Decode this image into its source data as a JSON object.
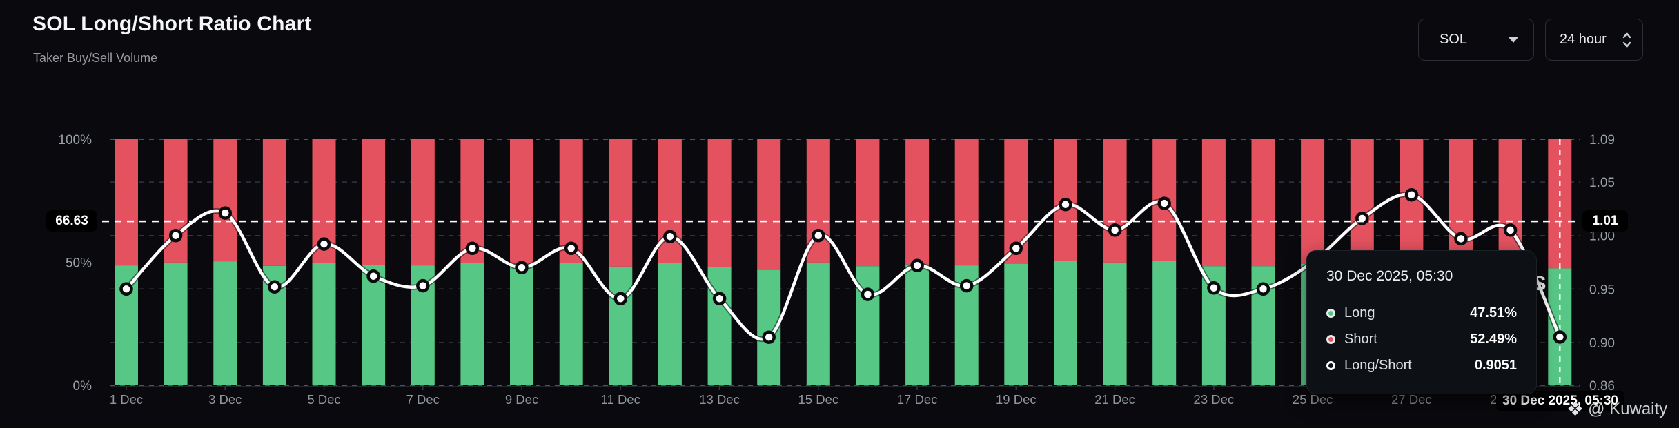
{
  "header": {
    "title": "SOL Long/Short Ratio Chart",
    "subtitle": "Taker Buy/Sell Volume"
  },
  "controls": {
    "symbol_value": "SOL",
    "interval_value": "24 hour"
  },
  "chart_data": {
    "type": "bar",
    "subtype": "stacked-100-percent-bars-with-line-overlay",
    "title": "SOL Long/Short Ratio Chart",
    "categories": [
      "1 Dec",
      "2 Dec",
      "3 Dec",
      "4 Dec",
      "5 Dec",
      "6 Dec",
      "7 Dec",
      "8 Dec",
      "9 Dec",
      "10 Dec",
      "11 Dec",
      "12 Dec",
      "13 Dec",
      "14 Dec",
      "15 Dec",
      "16 Dec",
      "17 Dec",
      "18 Dec",
      "19 Dec",
      "20 Dec",
      "21 Dec",
      "22 Dec",
      "23 Dec",
      "24 Dec",
      "25 Dec",
      "26 Dec",
      "27 Dec",
      "28 Dec",
      "29 Dec",
      "30 Dec"
    ],
    "x_axis_tick_labels": [
      "1 Dec",
      "3 Dec",
      "5 Dec",
      "7 Dec",
      "9 Dec",
      "11 Dec",
      "13 Dec",
      "15 Dec",
      "17 Dec",
      "19 Dec",
      "21 Dec",
      "23 Dec",
      "25 Dec",
      "27 Dec",
      "29 Dec"
    ],
    "left_axis": {
      "tick_labels": [
        "100%",
        "50%",
        "0%"
      ],
      "tick_values": [
        100,
        50,
        0
      ],
      "range": [
        0,
        100
      ]
    },
    "right_axis": {
      "tick_labels": [
        "1.09",
        "1.05",
        "1.00",
        "0.95",
        "0.90",
        "0.86"
      ],
      "tick_values": [
        1.09,
        1.05,
        1.0,
        0.95,
        0.9,
        0.86
      ],
      "range": [
        0.86,
        1.09
      ]
    },
    "grid": "dashed-horizontal",
    "legend_position": "none",
    "series": [
      {
        "name": "Long",
        "type": "bar",
        "unit": "%",
        "color": "#57c786",
        "values": [
          48.7,
          49.9,
          50.4,
          48.5,
          49.7,
          48.8,
          48.7,
          49.6,
          49.3,
          49.6,
          48.2,
          49.8,
          48.1,
          46.9,
          49.9,
          48.4,
          49.1,
          48.7,
          49.4,
          50.6,
          49.9,
          50.6,
          48.4,
          48.4,
          49.3,
          50.3,
          50.9,
          49.9,
          50.1,
          47.51
        ]
      },
      {
        "name": "Short",
        "type": "bar",
        "unit": "%",
        "color": "#e4525f",
        "values": [
          51.3,
          50.1,
          49.6,
          51.5,
          50.3,
          51.2,
          51.3,
          50.4,
          50.7,
          50.4,
          51.8,
          50.2,
          51.9,
          53.1,
          50.1,
          51.6,
          50.9,
          51.3,
          50.6,
          49.4,
          50.1,
          49.4,
          51.6,
          51.6,
          50.7,
          49.7,
          49.1,
          50.1,
          49.9,
          52.49
        ]
      },
      {
        "name": "Long/Short",
        "type": "line",
        "color": "#ffffff",
        "values": [
          0.95,
          1.0,
          1.021,
          0.952,
          0.992,
          0.962,
          0.953,
          0.988,
          0.97,
          0.988,
          0.941,
          0.999,
          0.941,
          0.905,
          1.0,
          0.945,
          0.972,
          0.953,
          0.988,
          1.029,
          1.005,
          1.03,
          0.951,
          0.95,
          0.975,
          1.016,
          1.038,
          0.997,
          1.005,
          0.9051
        ]
      }
    ]
  },
  "crosshair": {
    "left_label": "66.63",
    "right_label": "1.01",
    "bottom_label": "30 Dec 2025, 05:30",
    "hover_category": "30 Dec",
    "horizontal_value_pct": 66.63,
    "vertical_category_index": 29
  },
  "tooltip": {
    "title": "30 Dec 2025, 05:30",
    "rows": [
      {
        "label": "Long",
        "value": "47.51%",
        "marker_color": "#57c786"
      },
      {
        "label": "Short",
        "value": "52.49%",
        "marker_color": "#e4525f"
      },
      {
        "label": "Long/Short",
        "value": "0.9051",
        "marker_color": "#ffffff"
      }
    ]
  },
  "watermark": {
    "icon": "diamond-logo-icon",
    "icon_glyph": "❖",
    "text": "@ Kuwaity"
  },
  "partial_text": "S",
  "colors": {
    "background": "#0a0a0e",
    "long": "#57c786",
    "short": "#e4525f",
    "line": "#ffffff",
    "axis_text": "#99a0a8",
    "badge_bg": "#000000",
    "tooltip_bg": "#0d1015"
  }
}
